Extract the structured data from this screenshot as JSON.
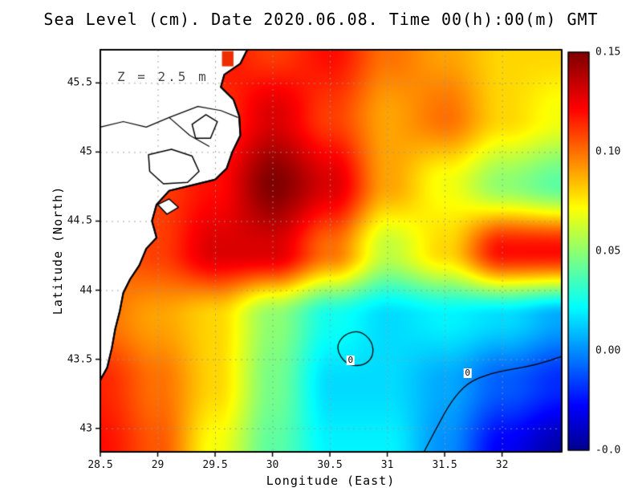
{
  "title": "Sea Level (cm). Date 2020.06.08. Time 00(h):00(m) GMT",
  "annotation": "Z = 2.5 m",
  "chart_data": {
    "type": "heatmap",
    "title": "Sea Level (cm). Date 2020.06.08. Time 00(h):00(m) GMT",
    "xlabel": "Longitude (East)",
    "ylabel": "Latitude (North)",
    "xlim": [
      28.5,
      32.52
    ],
    "ylim": [
      42.83,
      45.74
    ],
    "xticks": {
      "values": [
        28.5,
        29,
        29.5,
        30,
        30.5,
        31,
        31.5,
        32
      ],
      "labels": [
        "28.5",
        "29",
        "29.5",
        "30",
        "30.5",
        "31",
        "31.5",
        "32"
      ]
    },
    "yticks": {
      "values": [
        43,
        43.5,
        44,
        44.5,
        45,
        45.5
      ],
      "labels": [
        "43",
        "43.5",
        "44",
        "44.5",
        "45",
        "45.5"
      ]
    },
    "colorbar": {
      "colormap": "jet",
      "vmin": -0.05,
      "vmax": 0.15,
      "tick_labels": [
        "0.15",
        "0.10",
        "0.05",
        "0.00",
        "-0.0"
      ]
    },
    "grid": {
      "nlon": 9,
      "nlat": 7,
      "values": [
        [
          0.1,
          0.1,
          0.12,
          0.11,
          0.12,
          0.1,
          0.09,
          0.08,
          0.08
        ],
        [
          0.1,
          0.1,
          0.11,
          0.13,
          0.11,
          0.09,
          0.1,
          0.08,
          0.07
        ],
        [
          0.1,
          0.11,
          0.12,
          0.15,
          0.13,
          0.09,
          0.07,
          0.05,
          0.04
        ],
        [
          0.1,
          0.11,
          0.13,
          0.13,
          0.1,
          0.06,
          0.08,
          0.12,
          0.12
        ],
        [
          0.1,
          0.09,
          0.08,
          0.05,
          0.025,
          0.015,
          0.02,
          0.015,
          0.005
        ],
        [
          0.115,
          0.1,
          0.08,
          0.045,
          0.015,
          0.015,
          0.005,
          -0.01,
          -0.02
        ],
        [
          0.12,
          0.105,
          0.07,
          0.04,
          0.02,
          0.02,
          0.0,
          -0.03,
          -0.045
        ]
      ]
    },
    "map_features": {
      "land_polygon": [
        [
          28.5,
          45.74
        ],
        [
          29.78,
          45.74
        ],
        [
          29.72,
          45.64
        ],
        [
          29.58,
          45.56
        ],
        [
          29.55,
          45.47
        ],
        [
          29.66,
          45.38
        ],
        [
          29.71,
          45.26
        ],
        [
          29.72,
          45.12
        ],
        [
          29.65,
          45.0
        ],
        [
          29.6,
          44.88
        ],
        [
          29.5,
          44.8
        ],
        [
          29.3,
          44.76
        ],
        [
          29.1,
          44.72
        ],
        [
          28.99,
          44.62
        ],
        [
          28.95,
          44.5
        ],
        [
          28.99,
          44.38
        ],
        [
          28.9,
          44.3
        ],
        [
          28.84,
          44.18
        ],
        [
          28.76,
          44.08
        ],
        [
          28.7,
          43.98
        ],
        [
          28.67,
          43.85
        ],
        [
          28.63,
          43.72
        ],
        [
          28.6,
          43.58
        ],
        [
          28.56,
          43.44
        ],
        [
          28.5,
          43.35
        ]
      ],
      "lakes": [
        [
          [
            28.92,
            44.98
          ],
          [
            29.12,
            45.02
          ],
          [
            29.3,
            44.97
          ],
          [
            29.36,
            44.86
          ],
          [
            29.26,
            44.78
          ],
          [
            29.05,
            44.77
          ],
          [
            28.93,
            44.86
          ]
        ],
        [
          [
            29.3,
            45.2
          ],
          [
            29.42,
            45.27
          ],
          [
            29.52,
            45.22
          ],
          [
            29.46,
            45.1
          ],
          [
            29.33,
            45.1
          ]
        ],
        [
          [
            29.0,
            44.62
          ],
          [
            29.1,
            44.66
          ],
          [
            29.18,
            44.6
          ],
          [
            29.08,
            44.55
          ]
        ]
      ],
      "rivers": [
        [
          [
            28.5,
            45.18
          ],
          [
            28.7,
            45.22
          ],
          [
            28.9,
            45.18
          ],
          [
            29.1,
            45.25
          ],
          [
            29.35,
            45.33
          ],
          [
            29.55,
            45.3
          ],
          [
            29.7,
            45.25
          ]
        ],
        [
          [
            29.1,
            45.25
          ],
          [
            29.28,
            45.12
          ],
          [
            29.45,
            45.04
          ]
        ]
      ],
      "red_marker": {
        "lon": 29.56,
        "lat": 45.73,
        "dlon": 0.1,
        "dlat": 0.11,
        "color": "#ee2e00"
      }
    },
    "contours": [
      {
        "label": "0",
        "closed": true,
        "label_pos": [
          30.68,
          43.49
        ],
        "points": [
          [
            30.55,
            43.58
          ],
          [
            30.62,
            43.68
          ],
          [
            30.76,
            43.71
          ],
          [
            30.87,
            43.63
          ],
          [
            30.88,
            43.52
          ],
          [
            30.79,
            43.45
          ],
          [
            30.64,
            43.46
          ]
        ]
      },
      {
        "label": "0",
        "closed": false,
        "label_pos": [
          31.7,
          43.4
        ],
        "points": [
          [
            31.32,
            42.83
          ],
          [
            31.44,
            43.02
          ],
          [
            31.56,
            43.2
          ],
          [
            31.7,
            43.33
          ],
          [
            31.9,
            43.4
          ],
          [
            32.1,
            43.43
          ],
          [
            32.3,
            43.46
          ],
          [
            32.52,
            43.52
          ]
        ]
      }
    ]
  }
}
